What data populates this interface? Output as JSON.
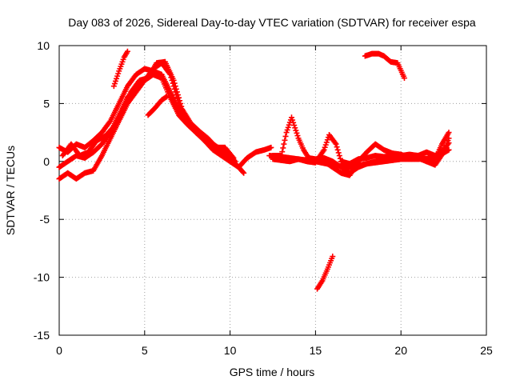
{
  "chart_data": {
    "type": "scatter",
    "title": "Day 083 of 2026, Sidereal Day-to-day VTEC variation (SDTVAR) for receiver espa",
    "xlabel": "GPS time / hours",
    "ylabel": "SDTVAR / TECUs",
    "xlim": [
      0,
      25
    ],
    "ylim": [
      -15,
      10
    ],
    "xticks": [
      0,
      5,
      10,
      15,
      20,
      25
    ],
    "yticks": [
      -15,
      -10,
      -5,
      0,
      5,
      10
    ],
    "xtick_labels": [
      "0",
      "5",
      "10",
      "15",
      "20",
      "25"
    ],
    "ytick_labels": [
      "-15",
      "-10",
      "-5",
      "0",
      "5",
      "10"
    ],
    "grid": true,
    "marker": "plus",
    "color": "#ff0000",
    "series": [
      {
        "name": "track-1",
        "x": [
          0,
          0.5,
          1,
          1.5,
          2,
          2.5,
          3,
          3.5,
          4,
          4.5,
          5,
          5.5,
          6,
          6.5,
          7,
          7.5,
          8,
          8.5,
          9,
          9.5,
          10,
          10.3
        ],
        "y": [
          1.2,
          0.8,
          1.5,
          1.2,
          1.8,
          2.5,
          3.5,
          5,
          6.5,
          7.5,
          8,
          7.8,
          7.5,
          6,
          4.5,
          3.5,
          2.8,
          2.2,
          1.5,
          1,
          0.5,
          0
        ]
      },
      {
        "name": "track-2",
        "x": [
          0,
          0.5,
          1,
          1.5,
          2,
          2.5,
          3,
          3.5,
          4,
          4.5,
          5,
          5.5,
          6,
          6.5,
          7,
          7.5,
          8,
          8.5,
          9,
          9.5,
          10,
          10.5,
          11,
          11.5,
          12,
          12.4
        ],
        "y": [
          -1.5,
          -1,
          -1.5,
          -1,
          -0.8,
          0.5,
          2,
          3.5,
          5,
          6,
          7,
          7.5,
          7.2,
          5.5,
          4,
          3.2,
          2.5,
          2,
          1.5,
          0.8,
          0.3,
          -0.5,
          0.3,
          0.8,
          1,
          1.2
        ]
      },
      {
        "name": "track-3",
        "x": [
          0,
          0.5,
          1,
          1.5,
          2,
          2.5,
          3,
          3.5,
          4,
          4.5,
          5,
          5.5,
          6,
          6.5,
          7,
          7.5,
          8,
          8.5,
          9,
          9.5,
          10,
          10.5,
          10.8
        ],
        "y": [
          -0.5,
          0,
          0.5,
          0.3,
          0.8,
          1.5,
          2.5,
          4,
          5.5,
          6.5,
          7,
          8,
          8.5,
          7.5,
          5,
          3.5,
          2.5,
          1.8,
          1,
          0.5,
          0,
          -0.5,
          -1
        ]
      },
      {
        "name": "track-4",
        "x": [
          0.2,
          0.7,
          1.2,
          1.7,
          2.2,
          2.7,
          3.2,
          3.7,
          4.2,
          4.7,
          5.2,
          5.7,
          6.2,
          6.7,
          7.2,
          7.7,
          8.2,
          8.7,
          9.2,
          9.7,
          10.2
        ],
        "y": [
          0.5,
          1.5,
          0.5,
          0.8,
          1.8,
          2.2,
          3,
          4.2,
          6,
          7,
          7.2,
          8.5,
          8.6,
          7,
          4.5,
          3.3,
          2.6,
          2,
          1.2,
          1.2,
          0.3
        ]
      },
      {
        "name": "track-5",
        "x": [
          3.2,
          3.5,
          3.8,
          4.0
        ],
        "y": [
          6.5,
          7.8,
          9,
          9.5
        ]
      },
      {
        "name": "track-6",
        "x": [
          5.2,
          5.6,
          6.0,
          6.3
        ],
        "y": [
          4,
          4.6,
          5.3,
          5.6
        ]
      },
      {
        "name": "track-7",
        "x": [
          12.5,
          13,
          13.3,
          13.6,
          14,
          14.3,
          14.6,
          15,
          15.5,
          16,
          16.5,
          17,
          17.5,
          18,
          18.5,
          19,
          19.5,
          20,
          20.5,
          21,
          21.5,
          22,
          22.4,
          22.8
        ],
        "y": [
          0.5,
          0.5,
          2.5,
          3.8,
          2,
          1,
          0.3,
          0.2,
          0.3,
          0,
          -0.5,
          -1,
          -0.5,
          -0.2,
          0,
          0.3,
          0.2,
          0.5,
          0.5,
          0.3,
          0,
          0.2,
          1.5,
          2.5
        ]
      },
      {
        "name": "track-8",
        "x": [
          12.5,
          13,
          13.5,
          14,
          14.5,
          15,
          15.5,
          15.8,
          16.2,
          16.5,
          17,
          17.5,
          18,
          18.5,
          19,
          19.5,
          20,
          20.5,
          21,
          21.5,
          22,
          22.5,
          22.8
        ],
        "y": [
          0.2,
          0.1,
          0,
          0.2,
          0,
          -0.1,
          1,
          2.3,
          1.5,
          0,
          -0.2,
          0.2,
          0.3,
          0.5,
          0.4,
          0.5,
          0.5,
          0.6,
          0.5,
          0.8,
          0.5,
          1,
          1.6
        ]
      },
      {
        "name": "track-9",
        "x": [
          15.5,
          16,
          16.5,
          17,
          17.5,
          18,
          18.5,
          19,
          19.5,
          20,
          20.5,
          21,
          21.5,
          22,
          22.5,
          22.8
        ],
        "y": [
          0,
          -0.5,
          -1,
          -1.2,
          0,
          0.8,
          1.5,
          1,
          0.7,
          0.6,
          0.3,
          0.5,
          0,
          -0.3,
          0.8,
          2
        ]
      },
      {
        "name": "track-10",
        "x": [
          12.3,
          13,
          14,
          15,
          16,
          17,
          18,
          19,
          20,
          21,
          22,
          22.8
        ],
        "y": [
          0.5,
          0.4,
          0.2,
          0,
          -0.3,
          -0.5,
          -0.2,
          0,
          0.2,
          0.2,
          0.3,
          1
        ]
      },
      {
        "name": "track-11",
        "x": [
          15.1,
          15.4,
          15.7,
          16.0
        ],
        "y": [
          -11,
          -10.3,
          -9.3,
          -8.2
        ]
      },
      {
        "name": "track-12",
        "x": [
          17.9,
          18.3,
          18.7,
          19.0,
          19.4,
          19.8,
          20.2
        ],
        "y": [
          9.1,
          9.3,
          9.3,
          9.1,
          8.6,
          8.5,
          7.2
        ]
      }
    ]
  }
}
